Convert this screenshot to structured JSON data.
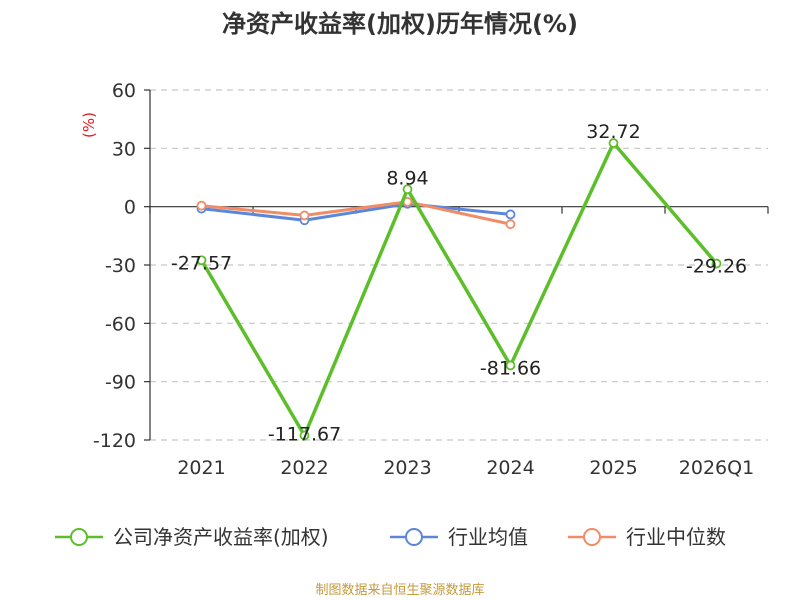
{
  "title": "净资产收益率(加权)历年情况(%)",
  "y_unit_label": "(%)",
  "source": "制图数据来自恒生聚源数据库",
  "colors": {
    "company": "#5cbf2a",
    "industry_avg": "#5b86db",
    "industry_median": "#f08c66",
    "unit_label": "#e31a1c",
    "source": "#c49a3c",
    "grid": "#c8c8c8",
    "axis": "#333333"
  },
  "chart_data": {
    "type": "line",
    "title": "净资产收益率(加权)历年情况(%)",
    "ylabel": "(%)",
    "xlabel": "",
    "categories": [
      "2021",
      "2022",
      "2023",
      "2024",
      "2025",
      "2026Q1"
    ],
    "ylim": [
      -120,
      60
    ],
    "yticks": [
      60,
      30,
      0,
      -30,
      -60,
      -90,
      -120
    ],
    "grid": true,
    "legend": "bottom",
    "series": [
      {
        "name": "公司净资产收益率(加权)",
        "values": [
          -27.57,
          -117.67,
          8.94,
          -81.66,
          32.72,
          -29.26
        ],
        "labels": [
          "-27.57",
          "-117.67",
          "8.94",
          "-81.66",
          "32.72",
          "-29.26"
        ]
      },
      {
        "name": "行业均值",
        "values": [
          -1,
          -7,
          1.5,
          -4,
          null,
          null
        ]
      },
      {
        "name": "行业中位数",
        "values": [
          0.5,
          -4.5,
          2.5,
          -9,
          null,
          null
        ]
      }
    ]
  }
}
